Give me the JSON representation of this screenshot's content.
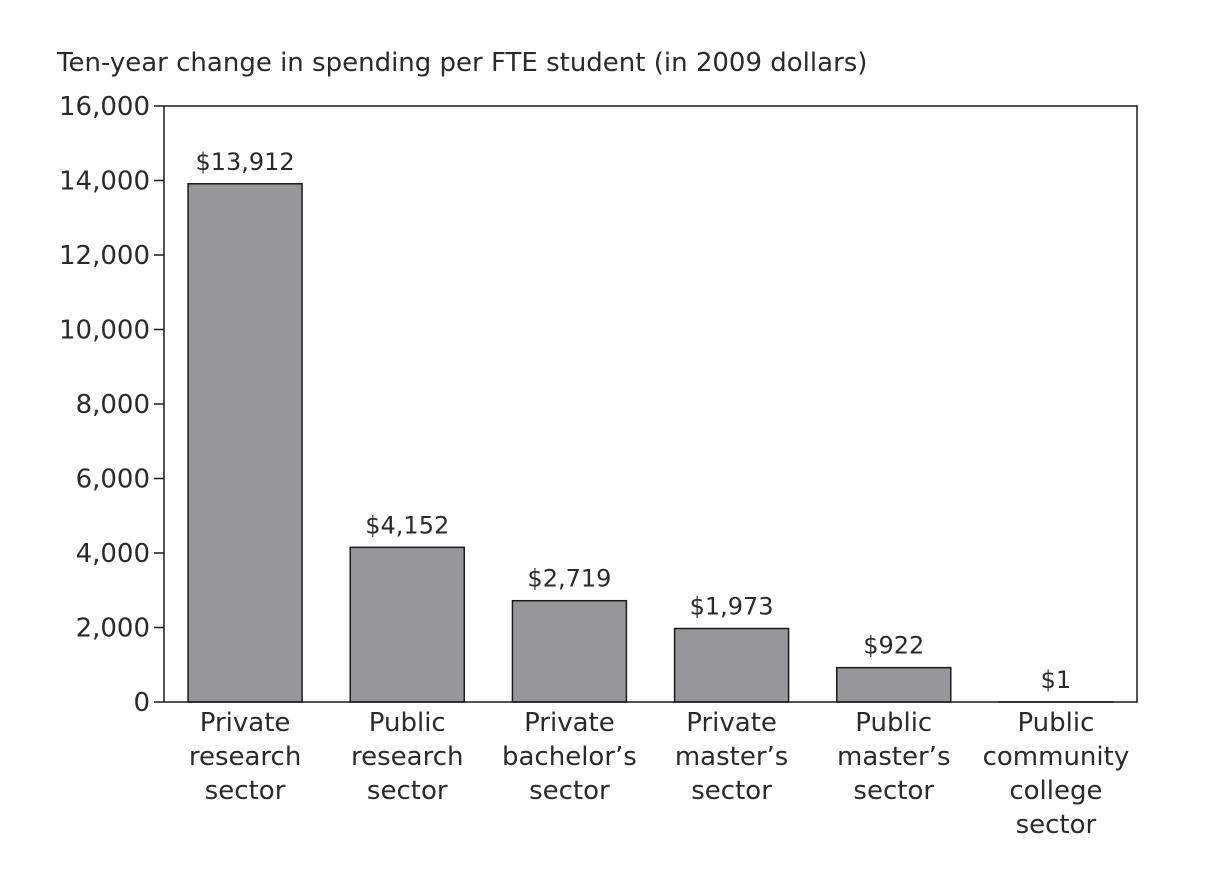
{
  "chart_data": {
    "type": "bar",
    "title": "Ten-year change in spending per FTE student (in 2009 dollars)",
    "xlabel": "",
    "ylabel": "",
    "categories": [
      [
        "Private",
        "research",
        "sector"
      ],
      [
        "Public",
        "research",
        "sector"
      ],
      [
        "Private",
        "bachelor’s",
        "sector"
      ],
      [
        "Private",
        "master’s",
        "sector"
      ],
      [
        "Public",
        "master’s",
        "sector"
      ],
      [
        "Public",
        "community",
        "college",
        "sector"
      ]
    ],
    "values": [
      13912,
      4152,
      2719,
      1973,
      922,
      1
    ],
    "data_labels": [
      "$13,912",
      "$4,152",
      "$2,719",
      "$1,973",
      "$922",
      "$1"
    ],
    "ylim": [
      0,
      16000
    ],
    "y_ticks": [
      0,
      2000,
      4000,
      6000,
      8000,
      10000,
      12000,
      14000,
      16000
    ],
    "y_tick_labels": [
      "0",
      "2,000",
      "4,000",
      "6,000",
      "8,000",
      "10,000",
      "12,000",
      "14,000",
      "16,000"
    ],
    "grid": false,
    "legend": "none",
    "bar_color": "#97979b",
    "edge_color": "#1a1a1a"
  }
}
